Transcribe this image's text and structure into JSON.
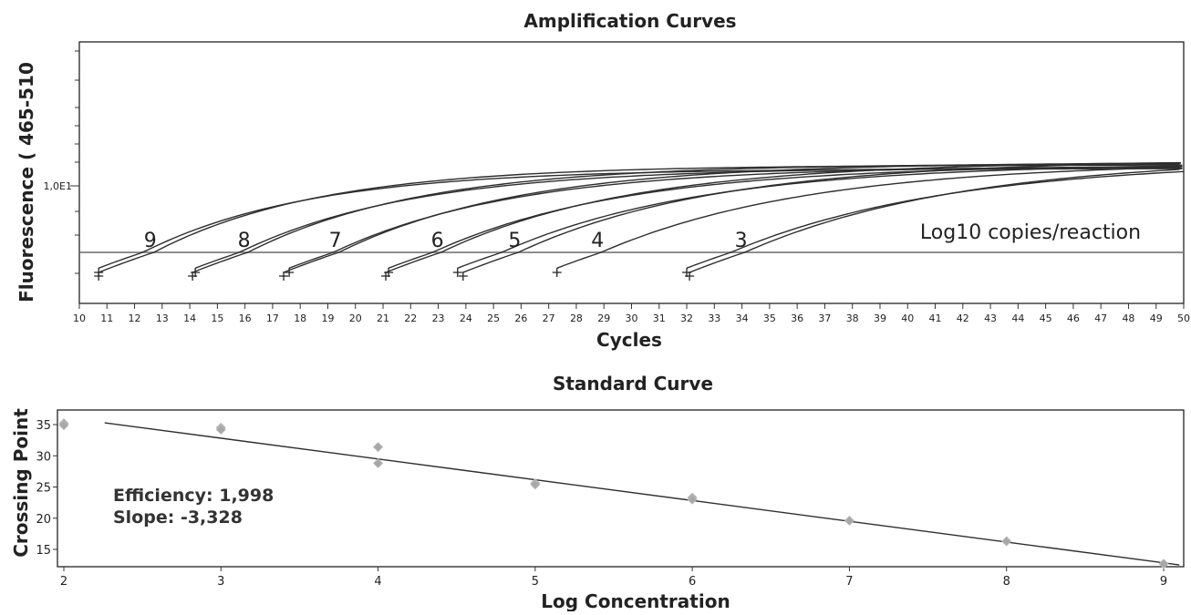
{
  "chart_data": [
    {
      "type": "line",
      "title": "Amplification Curves",
      "xlabel": "Cycles",
      "ylabel": "Fluorescence ( 465-510",
      "xlim": [
        10,
        50
      ],
      "y_scale": "log",
      "y_tick_label": "1,0E1",
      "threshold": true,
      "grid": false,
      "annotation": "Log10 copies/reaction",
      "series": [
        {
          "name": "9",
          "crossing_point": 12.7,
          "replicates": [
            12.3,
            12.7
          ]
        },
        {
          "name": "8",
          "crossing_point": 16.1,
          "replicates": [
            15.8,
            16.1
          ]
        },
        {
          "name": "7",
          "crossing_point": 19.4,
          "replicates": [
            19.2,
            19.4
          ]
        },
        {
          "name": "6",
          "crossing_point": 23.1,
          "replicates": [
            22.8,
            23.1
          ]
        },
        {
          "name": "5",
          "crossing_point": 25.9,
          "replicates": [
            25.3,
            25.9
          ]
        },
        {
          "name": "4",
          "crossing_point": 28.9,
          "replicates": [
            28.9
          ]
        },
        {
          "name": "3",
          "crossing_point": 34.1,
          "replicates": [
            33.6,
            34.1
          ]
        }
      ]
    },
    {
      "type": "scatter",
      "title": "Standard Curve",
      "xlabel": "Log Concentration",
      "ylabel": "Crossing Point",
      "xlim": [
        2,
        9.1
      ],
      "ylim": [
        11,
        37
      ],
      "x_ticks": [
        2,
        3,
        4,
        5,
        6,
        7,
        8,
        9
      ],
      "y_ticks": [
        15,
        20,
        25,
        30,
        35
      ],
      "grid": false,
      "points": [
        [
          2,
          35.2
        ],
        [
          2,
          34.9
        ],
        [
          3,
          34.5
        ],
        [
          3,
          34.2
        ],
        [
          4,
          31.4
        ],
        [
          4,
          28.8
        ],
        [
          5,
          25.6
        ],
        [
          5,
          25.4
        ],
        [
          6,
          23.3
        ],
        [
          6,
          23.0
        ],
        [
          7,
          19.6
        ],
        [
          8,
          16.3
        ],
        [
          9,
          12.7
        ]
      ],
      "fit_line": {
        "slope": -3.328,
        "intercept": 42.8,
        "x_range": [
          2.26,
          9.1
        ]
      },
      "annotations": {
        "efficiency": "Efficiency: 1,998",
        "slope": "Slope: -3,328"
      }
    }
  ]
}
